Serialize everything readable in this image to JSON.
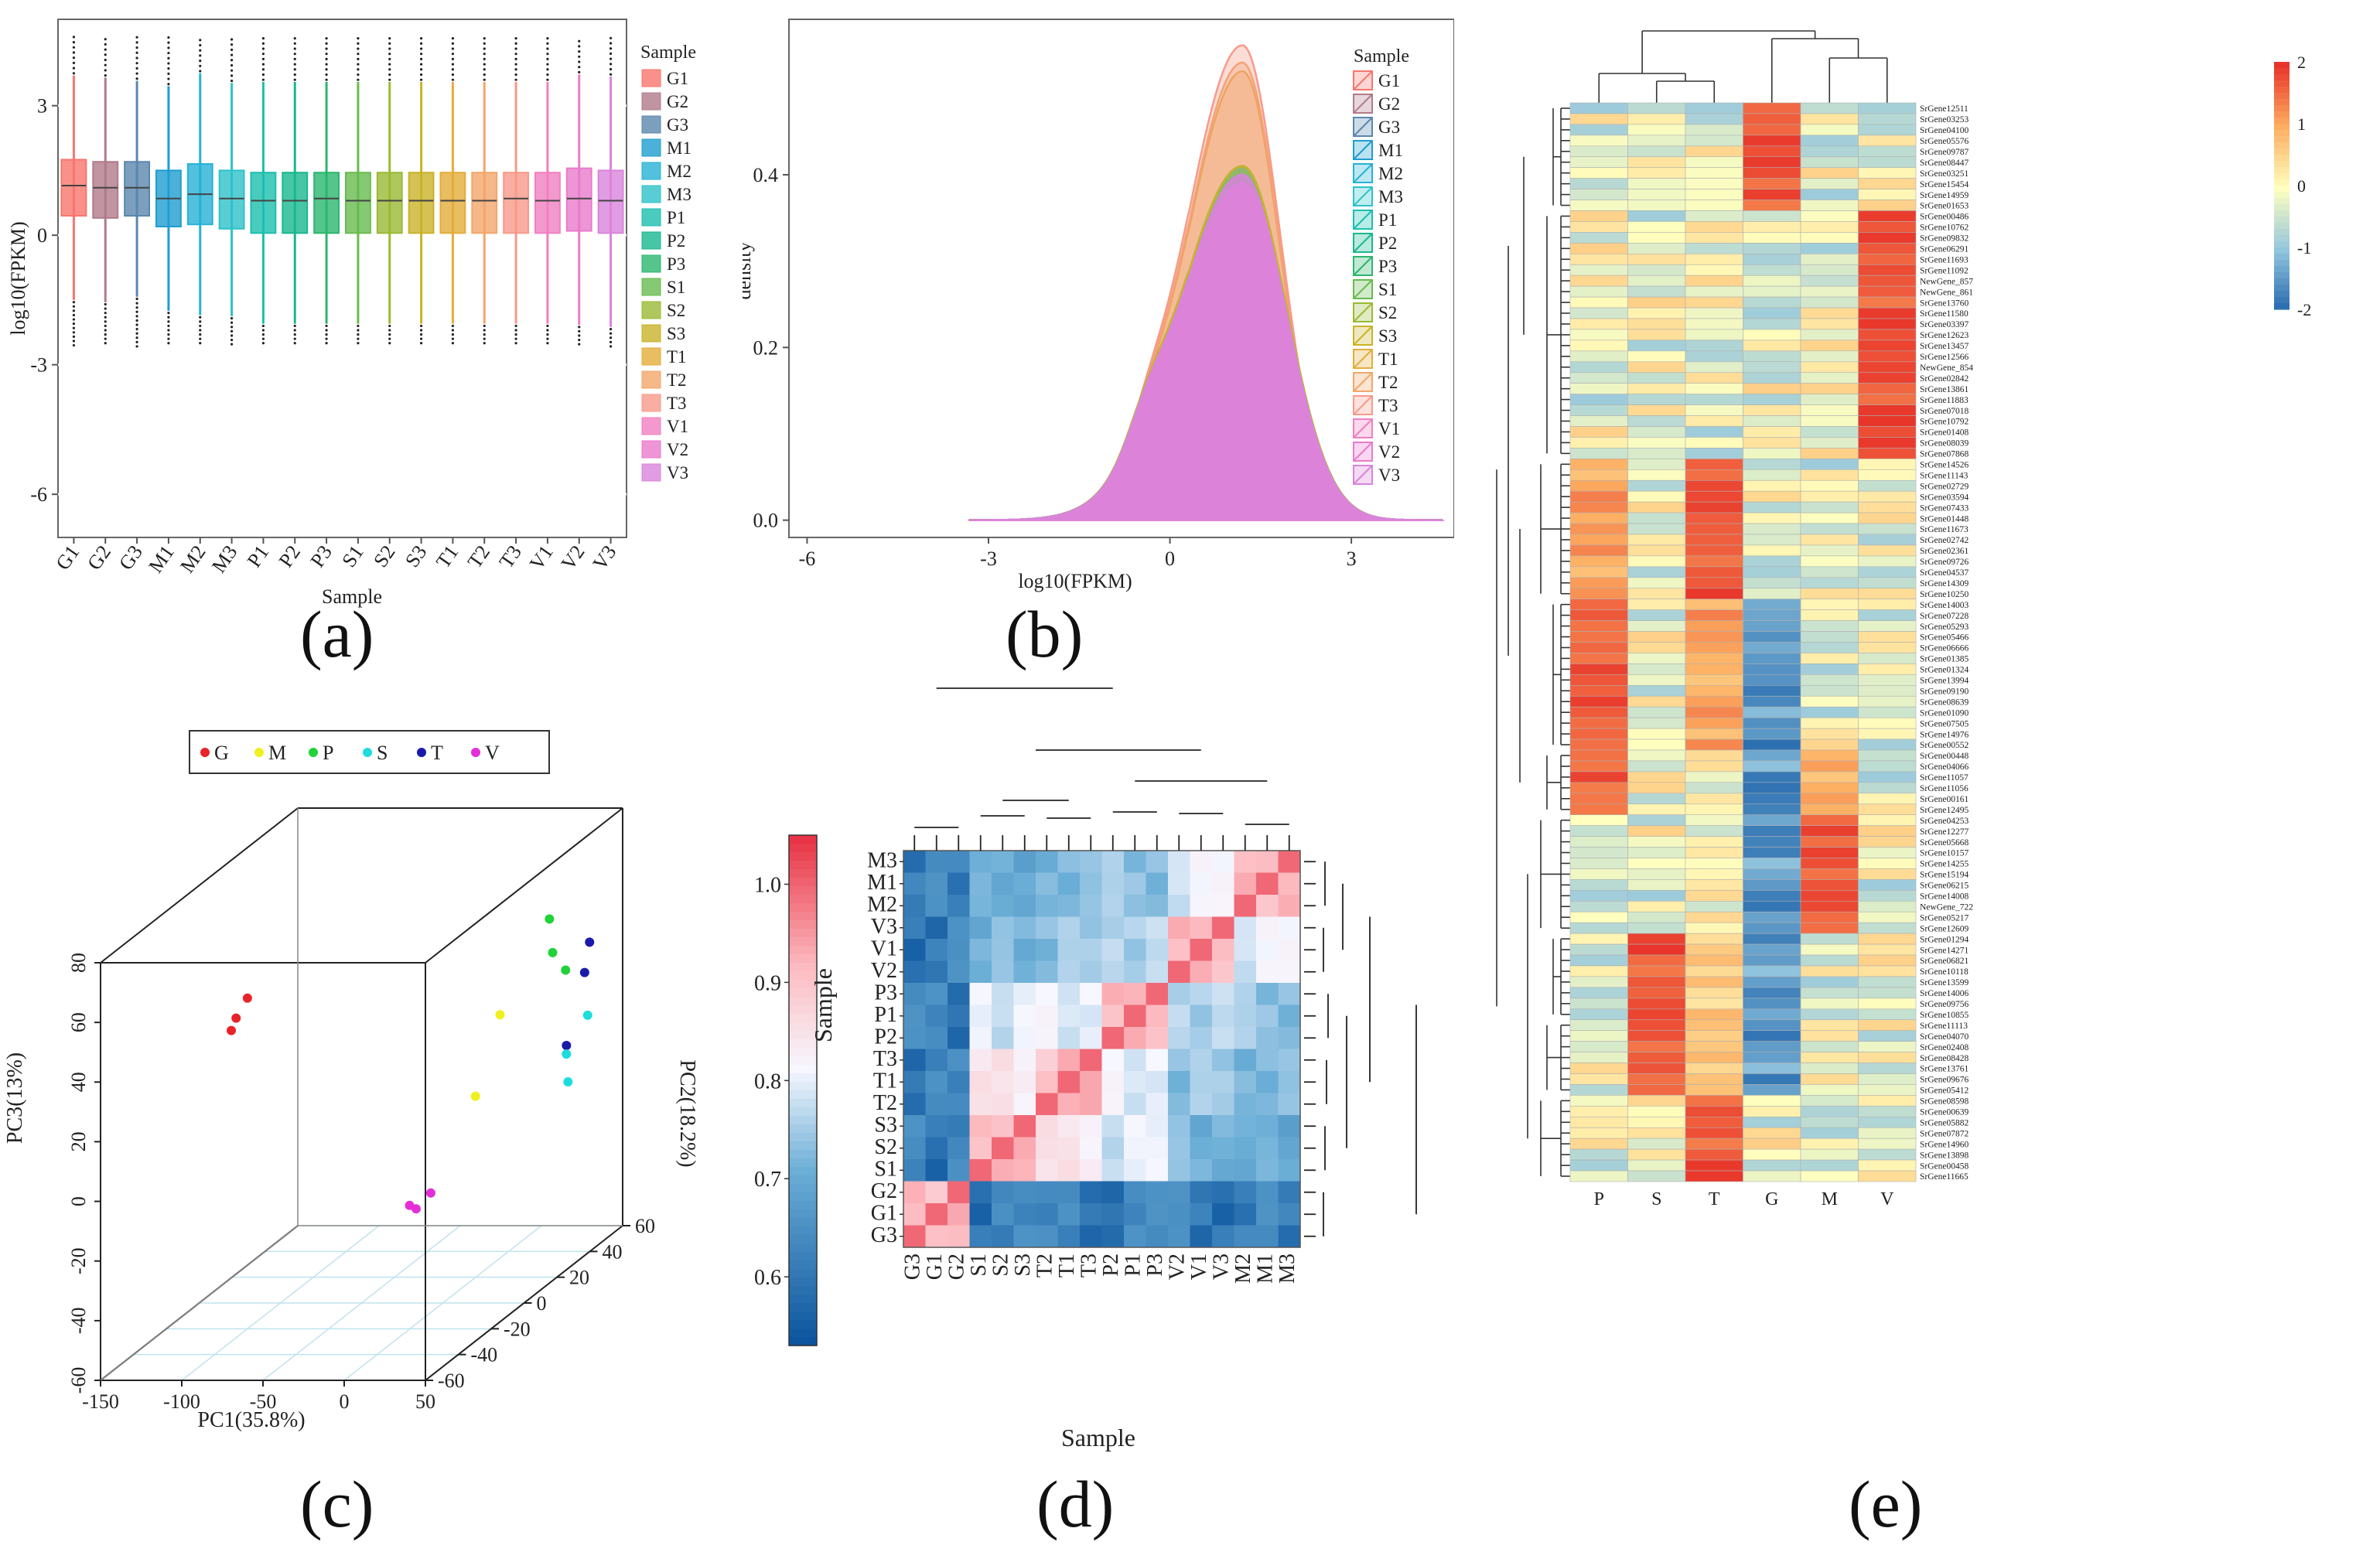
{
  "sublabels": {
    "a": "(a)",
    "b": "(b)",
    "c": "(c)",
    "d": "(d)",
    "e": "(e)"
  },
  "colors": {
    "samples": [
      "#f8766d",
      "#b07b8a",
      "#5b87ae",
      "#1f9ecf",
      "#26b2d6",
      "#2ec2c9",
      "#1bbfae",
      "#19b88f",
      "#2bb66e",
      "#67bb4f",
      "#9aba35",
      "#c9b329",
      "#e3ad3a",
      "#f3a66a",
      "#f79a8a",
      "#f17fc1",
      "#ea7bcc",
      "#d984dc"
    ],
    "pca": {
      "G": "#e8242a",
      "M": "#f0f01e",
      "P": "#21d238",
      "S": "#1fdcdc",
      "T": "#1a1aaa",
      "V": "#e42ed8"
    },
    "heat_low": "#2166ac",
    "heat_mid": "#ffffbf",
    "heat_high": "#e8342a"
  },
  "chart_data": [
    {
      "id": "a",
      "type": "box",
      "xlabel": "Sample",
      "ylabel": "log10(FPKM)",
      "categories": [
        "G1",
        "G2",
        "G3",
        "M1",
        "M2",
        "M3",
        "P1",
        "P2",
        "P3",
        "S1",
        "S2",
        "S3",
        "T1",
        "T2",
        "T3",
        "V1",
        "V2",
        "V3"
      ],
      "median": [
        1.15,
        1.1,
        1.1,
        0.85,
        0.95,
        0.85,
        0.8,
        0.8,
        0.85,
        0.8,
        0.8,
        0.8,
        0.8,
        0.8,
        0.85,
        0.8,
        0.85,
        0.8
      ],
      "q1": [
        0.45,
        0.4,
        0.45,
        0.2,
        0.25,
        0.15,
        0.05,
        0.05,
        0.05,
        0.05,
        0.05,
        0.05,
        0.05,
        0.05,
        0.05,
        0.05,
        0.1,
        0.05
      ],
      "q3": [
        1.75,
        1.7,
        1.7,
        1.5,
        1.65,
        1.5,
        1.45,
        1.45,
        1.45,
        1.45,
        1.45,
        1.45,
        1.45,
        1.45,
        1.45,
        1.45,
        1.55,
        1.5
      ],
      "ylim": [
        -7,
        5
      ],
      "yticks": [
        -6,
        -3,
        0,
        3
      ],
      "legend_title": "Sample"
    },
    {
      "id": "b",
      "type": "density",
      "xlabel": "log10(FPKM)",
      "ylabel": "density",
      "xlim": [
        -6.3,
        4.7
      ],
      "ylim": [
        -0.02,
        0.58
      ],
      "xticks": [
        -6,
        -3,
        0,
        3
      ],
      "yticks": [
        0.0,
        0.2,
        0.4
      ],
      "peak_density": [
        0.39,
        0.38,
        0.39,
        0.41,
        0.41,
        0.41,
        0.4,
        0.4,
        0.4,
        0.41,
        0.41,
        0.41,
        0.52,
        0.53,
        0.55,
        0.39,
        0.39,
        0.4
      ],
      "peak_x": 1.2,
      "legend_title": "Sample",
      "legend": [
        "G1",
        "G2",
        "G3",
        "M1",
        "M2",
        "M3",
        "P1",
        "P2",
        "P3",
        "S1",
        "S2",
        "S3",
        "T1",
        "T2",
        "T3",
        "V1",
        "V2",
        "V3"
      ]
    },
    {
      "id": "c",
      "type": "scatter3d",
      "xlabel": "PC1(35.8%)",
      "ylabel": "PC2(18.2%)",
      "zlabel": "PC3(13%)",
      "xticks": [
        -150,
        -100,
        -50,
        0,
        50
      ],
      "yticks": [
        -60,
        -40,
        -20,
        0,
        20,
        40,
        60
      ],
      "zticks": [
        -60,
        -40,
        -20,
        0,
        20,
        40,
        60,
        80
      ],
      "legend": [
        "G",
        "M",
        "P",
        "S",
        "T",
        "V"
      ],
      "points": [
        {
          "group": "G",
          "pc1": -110,
          "pc2": -20,
          "pc3": 40
        },
        {
          "group": "G",
          "pc1": -105,
          "pc2": -22,
          "pc3": 45
        },
        {
          "group": "G",
          "pc1": -95,
          "pc2": -25,
          "pc3": 53
        },
        {
          "group": "M",
          "pc1": 10,
          "pc2": 10,
          "pc3": 5
        },
        {
          "group": "M",
          "pc1": 15,
          "pc2": 20,
          "pc3": 28
        },
        {
          "group": "P",
          "pc1": 10,
          "pc2": 55,
          "pc3": 45
        },
        {
          "group": "P",
          "pc1": 15,
          "pc2": 52,
          "pc3": 35
        },
        {
          "group": "P",
          "pc1": 25,
          "pc2": 50,
          "pc3": 30
        },
        {
          "group": "T",
          "pc1": 60,
          "pc2": 30,
          "pc3": 48
        },
        {
          "group": "T",
          "pc1": 62,
          "pc2": 25,
          "pc3": 40
        },
        {
          "group": "T",
          "pc1": 66,
          "pc2": 10,
          "pc3": 22
        },
        {
          "group": "S",
          "pc1": 68,
          "pc2": 8,
          "pc3": 20
        },
        {
          "group": "S",
          "pc1": 72,
          "pc2": 5,
          "pc3": 12
        },
        {
          "group": "S",
          "pc1": 74,
          "pc2": 15,
          "pc3": 30
        },
        {
          "group": "V",
          "pc1": 20,
          "pc2": -40,
          "pc3": -10
        },
        {
          "group": "V",
          "pc1": 22,
          "pc2": -38,
          "pc3": -12
        },
        {
          "group": "V",
          "pc1": 28,
          "pc2": -35,
          "pc3": -8
        }
      ]
    },
    {
      "id": "d",
      "type": "heatmap",
      "xlabel": "Sample",
      "ylabel": "Sample",
      "rows": [
        "M3",
        "M1",
        "M2",
        "V3",
        "V1",
        "V2",
        "P3",
        "P1",
        "P2",
        "T3",
        "T1",
        "T2",
        "S3",
        "S2",
        "S1",
        "G2",
        "G1",
        "G3"
      ],
      "cols": [
        "G3",
        "G1",
        "G2",
        "S1",
        "S2",
        "S3",
        "T2",
        "T1",
        "T3",
        "P2",
        "P1",
        "P3",
        "V2",
        "V1",
        "V3",
        "M2",
        "M1",
        "M3"
      ],
      "colorbar_ticks": [
        0.6,
        0.7,
        0.8,
        0.9,
        1.0
      ],
      "vmin": 0.53,
      "vmax": 1.05
    },
    {
      "id": "e",
      "type": "heatmap",
      "cols": [
        "P",
        "S",
        "T",
        "G",
        "M",
        "V"
      ],
      "colorbar_ticks": [
        2,
        1,
        0,
        -1,
        -2
      ],
      "genes": [
        "SrGene12511",
        "SrGene03253",
        "SrGene04100",
        "SrGene05576",
        "SrGene09787",
        "SrGene08447",
        "SrGene03251",
        "SrGene15454",
        "SrGene14959",
        "SrGene01653",
        "SrGene00486",
        "SrGene10762",
        "SrGene09832",
        "SrGene06291",
        "SrGene11693",
        "SrGene11092",
        "NewGene_857",
        "NewGene_861",
        "SrGene13760",
        "SrGene11580",
        "SrGene03397",
        "SrGene12623",
        "SrGene13457",
        "SrGene12566",
        "NewGene_854",
        "SrGene02842",
        "SrGene13861",
        "SrGene11883",
        "SrGene07018",
        "SrGene10792",
        "SrGene01408",
        "SrGene08039",
        "SrGene07868",
        "SrGene14526",
        "SrGene11143",
        "SrGene02729",
        "SrGene03594",
        "SrGene07433",
        "SrGene01448",
        "SrGene11673",
        "SrGene02742",
        "SrGene02361",
        "SrGene09726",
        "SrGene04537",
        "SrGene14309",
        "SrGene10250",
        "SrGene14003",
        "SrGene07228",
        "SrGene05293",
        "SrGene05466",
        "SrGene06666",
        "SrGene01385",
        "SrGene01324",
        "SrGene13994",
        "SrGene09190",
        "SrGene08639",
        "SrGene01090",
        "SrGene07505",
        "SrGene14976",
        "SrGene00552",
        "SrGene00448",
        "SrGene04066",
        "SrGene11057",
        "SrGene11056",
        "SrGene00161",
        "SrGene12495",
        "SrGene04253",
        "SrGene12277",
        "SrGene05668",
        "SrGene10157",
        "SrGene14255",
        "SrGene15194",
        "SrGene06215",
        "SrGene14008",
        "NewGene_722",
        "SrGene05217",
        "SrGene12609",
        "SrGene01294",
        "SrGene14271",
        "SrGene06821",
        "SrGene10118",
        "SrGene13599",
        "SrGene14006",
        "SrGene09756",
        "SrGene10855",
        "SrGene11113",
        "SrGene04070",
        "SrGene02408",
        "SrGene08428",
        "SrGene13761",
        "SrGene09676",
        "SrGene05412",
        "SrGene08598",
        "SrGene00639",
        "SrGene05882",
        "SrGene07872",
        "SrGene14960",
        "SrGene13898",
        "SrGene00458",
        "SrGene11665"
      ]
    }
  ]
}
